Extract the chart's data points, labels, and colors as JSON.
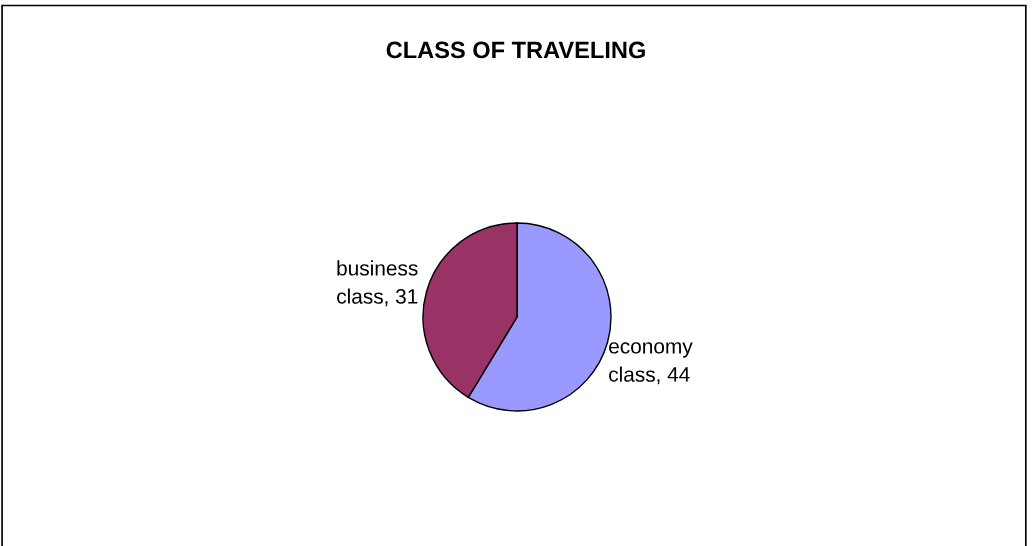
{
  "chart_data": {
    "type": "pie",
    "title": "CLASS OF TRAVELING",
    "categories": [
      "economy class",
      "business class"
    ],
    "values": [
      44,
      31
    ],
    "colors": [
      "#9999ff",
      "#993366"
    ],
    "value_labels": [
      ", 44",
      ", 31"
    ]
  }
}
